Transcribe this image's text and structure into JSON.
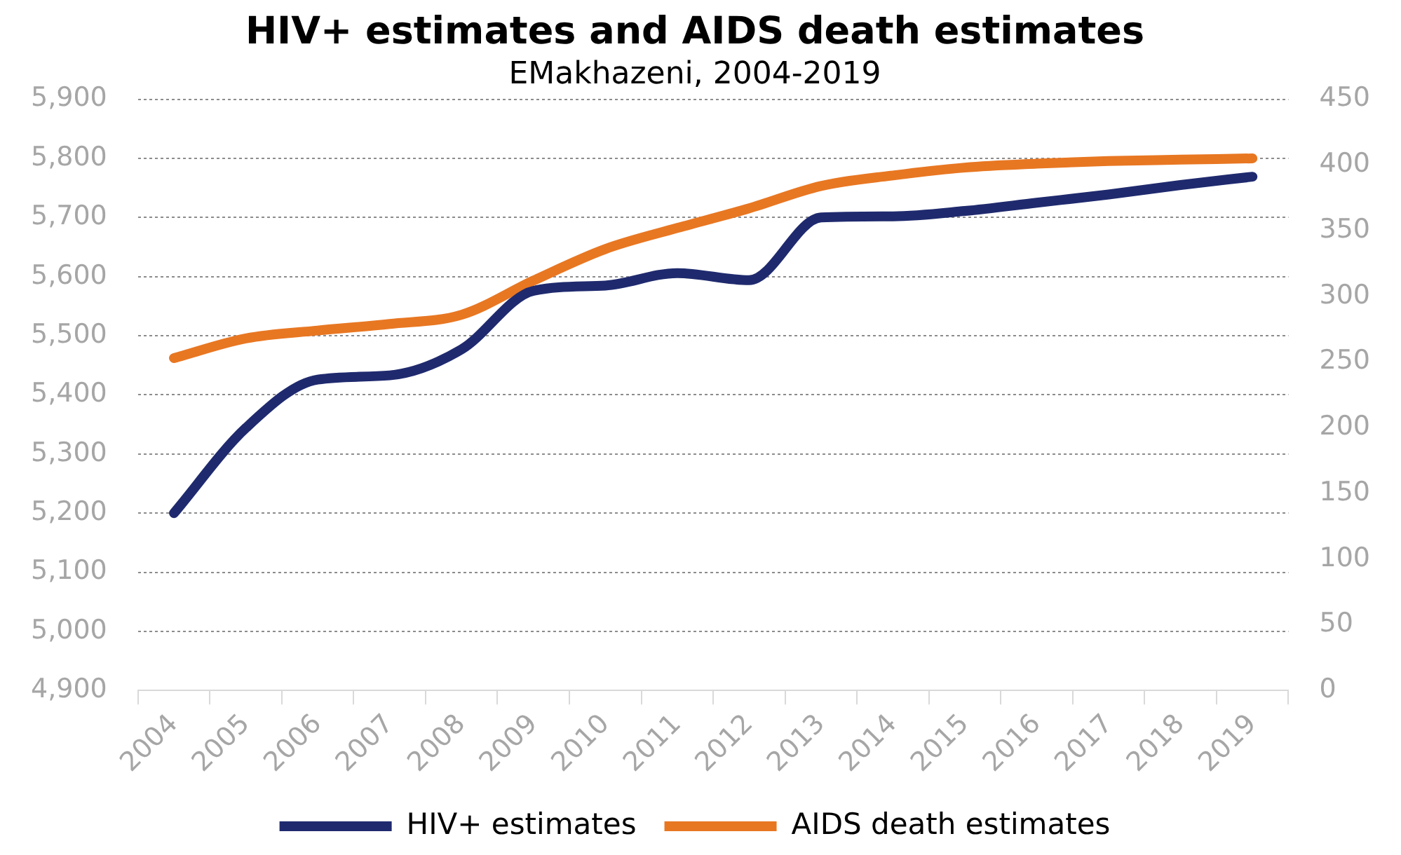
{
  "chart_data": {
    "type": "line",
    "title": "HIV+ estimates and AIDS death estimates",
    "subtitle": "EMakhazeni, 2004-2019",
    "categories": [
      "2004",
      "2005",
      "2006",
      "2007",
      "2008",
      "2009",
      "2010",
      "2011",
      "2012",
      "2013",
      "2014",
      "2015",
      "2016",
      "2017",
      "2018",
      "2019"
    ],
    "series": [
      {
        "name": "HIV+ estimates",
        "color": "#1f2a6e",
        "values": [
          5200,
          5344,
          5426,
          5433,
          5477,
          5576,
          5585,
          5606,
          5594,
          5700,
          5702,
          5711,
          5725,
          5739,
          5755,
          5769
        ]
      },
      {
        "name": "AIDS death estimates",
        "color": "#e87722",
        "axis": "y2",
        "values": [
          253,
          268,
          274,
          279,
          286,
          312,
          336,
          352,
          367,
          384,
          392,
          398,
          401,
          403,
          404,
          405
        ]
      }
    ],
    "ylim": [
      4900,
      5900
    ],
    "yticks": [
      {
        "value": 4900,
        "label": "4,900"
      },
      {
        "value": 5000,
        "label": "5,000"
      },
      {
        "value": 5100,
        "label": "5,100"
      },
      {
        "value": 5200,
        "label": "5,200"
      },
      {
        "value": 5300,
        "label": "5,300"
      },
      {
        "value": 5400,
        "label": "5,400"
      },
      {
        "value": 5500,
        "label": "5,500"
      },
      {
        "value": 5600,
        "label": "5,600"
      },
      {
        "value": 5700,
        "label": "5,700"
      },
      {
        "value": 5800,
        "label": "5,800"
      },
      {
        "value": 5900,
        "label": "5,900"
      }
    ],
    "y2lim": [
      0,
      450
    ],
    "y2ticks": [
      0,
      50,
      100,
      150,
      200,
      250,
      300,
      350,
      400,
      450
    ],
    "grid": "y",
    "legend": "bottom",
    "line_style": "solid",
    "marker": "none"
  }
}
